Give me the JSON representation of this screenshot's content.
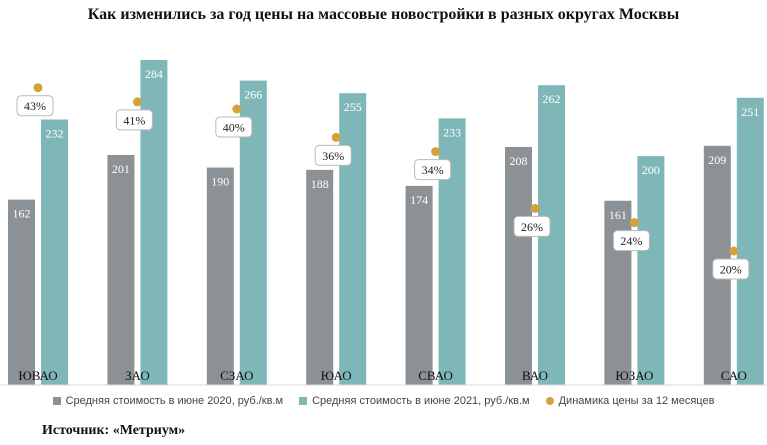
{
  "chart_data": {
    "type": "bar",
    "title": "Как изменились за год цены на массовые новостройки в разных округах Москвы",
    "categories": [
      "ЮВАО",
      "ЗАО",
      "СЗАО",
      "ЮАО",
      "СВАО",
      "ВАО",
      "ЮЗАО",
      "САО"
    ],
    "series": [
      {
        "name": "Средняя стоимость в июне 2020, руб./кв.м",
        "color": "#8c9195",
        "values": [
          162,
          201,
          190,
          188,
          174,
          208,
          161,
          209
        ]
      },
      {
        "name": "Средняя стоимость в июне 2021, руб./кв.м",
        "color": "#7fb7b8",
        "values": [
          232,
          284,
          266,
          255,
          233,
          262,
          200,
          251
        ]
      },
      {
        "name": "Динамика цены за 12 месяцев",
        "type": "scatter",
        "color": "#d4a23c",
        "values": [
          43,
          41,
          40,
          36,
          34,
          26,
          24,
          20
        ],
        "labels": [
          "43%",
          "41%",
          "40%",
          "36%",
          "34%",
          "26%",
          "24%",
          "20%"
        ]
      }
    ],
    "legend_position": "bottom",
    "grid": false
  },
  "source": "Источник: «Метриум»"
}
